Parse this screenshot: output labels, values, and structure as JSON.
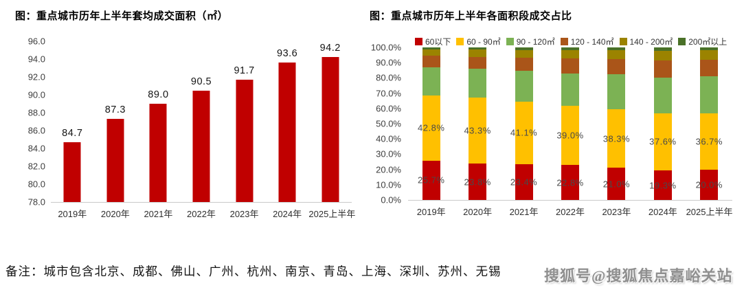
{
  "note": "备注：城市包含北京、成都、佛山、广州、杭州、南京、青岛、上海、深圳、苏州、无锡",
  "watermark": "搜狐号@搜狐焦点嘉峪关站",
  "colors": {
    "bar_red": "#C00000",
    "gold": "#FFC000",
    "green": "#7CB254",
    "brown": "#AA5519",
    "olive": "#9B8300",
    "dark_green": "#4A7128",
    "axis_line": "#c9c9c9"
  },
  "chart_data": [
    {
      "type": "bar",
      "title": "图：重点城市历年上半年套均成交面积（㎡）",
      "categories": [
        "2019年",
        "2020年",
        "2021年",
        "2022年",
        "2023年",
        "2024年",
        "2025上半年"
      ],
      "values": [
        84.7,
        87.3,
        89.0,
        90.5,
        91.7,
        93.6,
        94.2
      ],
      "bar_color": "#C00000",
      "xlabel": "",
      "ylabel": "",
      "ylim": [
        78.0,
        96.0
      ],
      "ystep": 2.0,
      "tick_decimals": 1,
      "tick_suffix": "",
      "label_decimals": 1,
      "label_suffix": "",
      "grid": false,
      "legend": false
    },
    {
      "type": "bar",
      "stacked": true,
      "title": "图：重点城市历年上半年各面积段成交占比",
      "categories": [
        "2019年",
        "2020年",
        "2021年",
        "2022年",
        "2023年",
        "2024年",
        "2025上半年"
      ],
      "series": [
        {
          "key": "under-60",
          "name": "60以下",
          "color": "#C00000",
          "show_labels": true,
          "values": [
            25.7,
            23.8,
            23.4,
            22.8,
            21.0,
            19.3,
            20.0
          ]
        },
        {
          "key": "60-90",
          "name": "60 - 90㎡",
          "color": "#FFC000",
          "show_labels": true,
          "values": [
            42.8,
            43.3,
            41.1,
            39.0,
            38.3,
            37.6,
            36.7
          ]
        },
        {
          "key": "90-120",
          "name": "90 - 120㎡",
          "color": "#7CB254",
          "show_labels": false,
          "values": [
            18.5,
            19.0,
            20.4,
            21.2,
            23.0,
            23.4,
            24.2
          ]
        },
        {
          "key": "120-140",
          "name": "120 - 140㎡",
          "color": "#AA5519",
          "show_labels": false,
          "values": [
            7.5,
            7.5,
            8.2,
            10.0,
            10.0,
            11.2,
            10.8
          ]
        },
        {
          "key": "140-200",
          "name": "140 - 200㎡",
          "color": "#9B8300",
          "show_labels": false,
          "values": [
            4.3,
            5.0,
            5.0,
            5.3,
            6.0,
            6.2,
            6.3
          ]
        },
        {
          "key": "over-200",
          "name": "200㎡以上",
          "color": "#4A7128",
          "show_labels": false,
          "values": [
            1.2,
            1.4,
            1.9,
            1.7,
            1.7,
            2.3,
            2.0
          ]
        }
      ],
      "xlabel": "",
      "ylabel": "",
      "ylim": [
        0,
        100
      ],
      "ystep": 10,
      "tick_decimals": 1,
      "tick_suffix": "%",
      "label_decimals": 1,
      "label_suffix": "%",
      "grid": false,
      "legend": true,
      "legend_position": "top"
    }
  ]
}
